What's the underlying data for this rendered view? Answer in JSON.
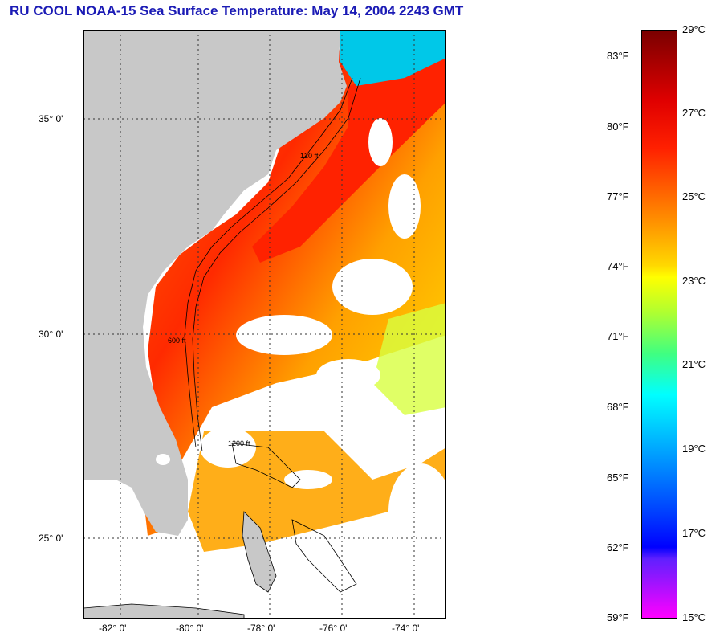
{
  "title": "RU COOL  NOAA-15  Sea Surface Temperature:  May 14, 2004 2243 GMT",
  "map": {
    "lat_labels": [
      "35° 0'",
      "30° 0'",
      "25° 0'"
    ],
    "lon_labels": [
      "-82° 0'",
      "-80° 0'",
      "-78° 0'",
      "-76° 0'",
      "-74° 0'"
    ],
    "contour_labels": [
      "120 ft",
      "600 ft",
      "1200 ft"
    ],
    "colors": {
      "land": "#c8c8c8",
      "cloud": "#ffffff",
      "grid": "#333333"
    }
  },
  "colorbar": {
    "fahrenheit": [
      "83°F",
      "80°F",
      "77°F",
      "74°F",
      "71°F",
      "68°F",
      "65°F",
      "62°F",
      "59°F"
    ],
    "celsius": [
      "29°C",
      "27°C",
      "25°C",
      "23°C",
      "21°C",
      "19°C",
      "17°C",
      "15°C"
    ],
    "scale_colors": [
      "#7a0000",
      "#ff0000",
      "#ff8c00",
      "#ffff00",
      "#7fff00",
      "#00ffff",
      "#0080ff",
      "#0000ff",
      "#ff00ff"
    ]
  }
}
